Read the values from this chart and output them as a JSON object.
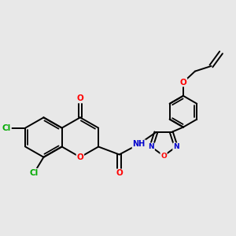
{
  "bg_color": "#e8e8e8",
  "bond_color": "#000000",
  "bond_width": 1.4,
  "atom_colors": {
    "O": "#ff0000",
    "N": "#0000cc",
    "Cl": "#00aa00",
    "C": "#000000",
    "H": "#555555"
  },
  "font_size_atom": 7.5,
  "fig_width": 3.0,
  "fig_height": 3.0,
  "dpi": 100
}
